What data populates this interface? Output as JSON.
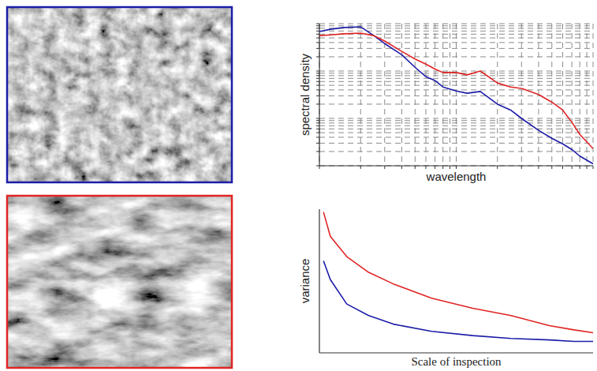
{
  "chart_data": [
    {
      "type": "line",
      "x_label": "wavelength",
      "y_label": "spectral density",
      "log": true,
      "grid": true,
      "tick_labels": false,
      "xlim": [
        1,
        100
      ],
      "ylim": [
        0.001,
        1
      ],
      "xticks": [
        1,
        2,
        3,
        4,
        5,
        6,
        7,
        8,
        9,
        10,
        20,
        30,
        40,
        50,
        60,
        70,
        80,
        90,
        100
      ],
      "yticks": [
        0.001,
        0.002,
        0.003,
        0.004,
        0.005,
        0.006,
        0.007,
        0.008,
        0.009,
        0.01,
        0.02,
        0.03,
        0.04,
        0.05,
        0.06,
        0.07,
        0.08,
        0.09,
        0.1,
        0.2,
        0.3,
        0.4,
        0.5,
        0.6,
        0.7,
        0.8,
        0.9,
        1
      ],
      "x": [
        1,
        1.2,
        1.5,
        2,
        2.5,
        3,
        4,
        5,
        6,
        7,
        8,
        10,
        12,
        15,
        20,
        25,
        30,
        40,
        50,
        60,
        70,
        80,
        100
      ],
      "series": [
        {
          "color": "#1c1ca8",
          "values": [
            0.68,
            0.76,
            0.83,
            0.86,
            0.56,
            0.38,
            0.22,
            0.12,
            0.076,
            0.063,
            0.046,
            0.038,
            0.034,
            0.037,
            0.02,
            0.015,
            0.01,
            0.0056,
            0.0038,
            0.0029,
            0.0022,
            0.0016,
            0.0011
          ]
        },
        {
          "color": "#e02424",
          "values": [
            0.56,
            0.58,
            0.61,
            0.63,
            0.56,
            0.43,
            0.26,
            0.18,
            0.14,
            0.11,
            0.093,
            0.093,
            0.083,
            0.1,
            0.056,
            0.046,
            0.043,
            0.032,
            0.022,
            0.015,
            0.0083,
            0.0046,
            0.0023
          ]
        }
      ]
    },
    {
      "type": "line",
      "x_label": "Scale of inspection",
      "y_label": "variance",
      "grid": false,
      "tick_labels": false,
      "xlim": [
        0,
        100
      ],
      "ylim": [
        0,
        100
      ],
      "x": [
        1.5,
        4,
        10,
        18,
        27,
        41,
        56,
        70,
        84,
        93,
        100
      ],
      "series": [
        {
          "color": "#e02424",
          "values": [
            98,
            81,
            67,
            56,
            48,
            38,
            31,
            26,
            19,
            16,
            14
          ]
        },
        {
          "color": "#1c1ca8",
          "values": [
            64,
            51,
            34,
            26,
            20,
            15,
            12,
            10,
            9,
            8,
            8
          ]
        }
      ]
    }
  ]
}
